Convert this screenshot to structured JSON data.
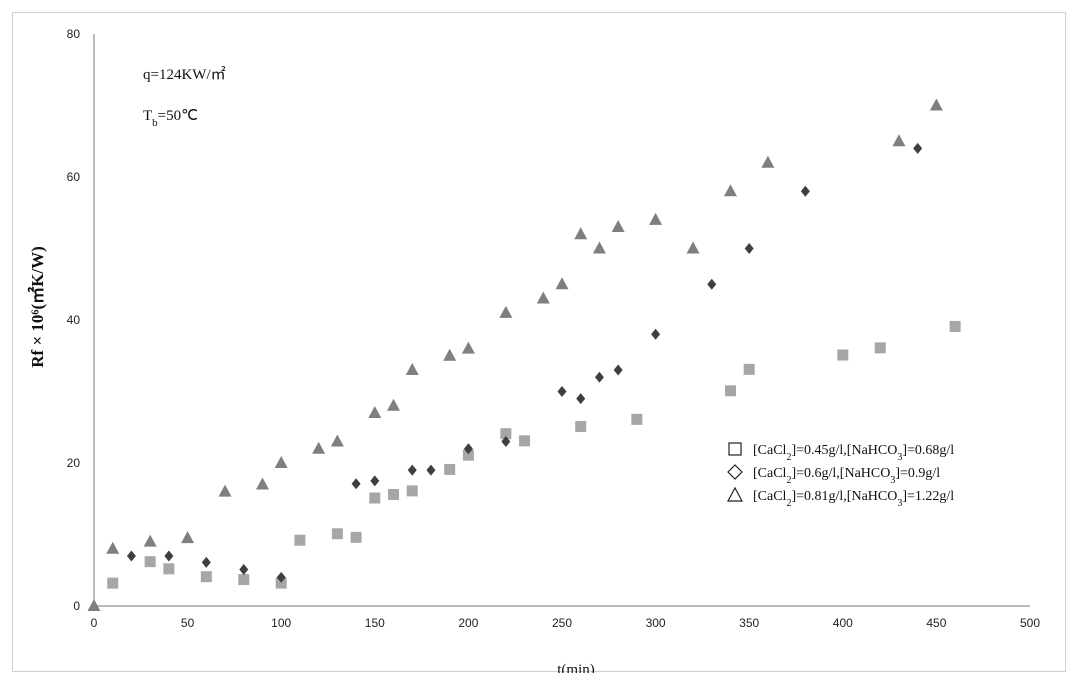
{
  "chart_data": {
    "type": "scatter",
    "xlabel": "t(min)",
    "ylabel": "Rf × 10⁶(㎡K/W)",
    "xlim": [
      0,
      500
    ],
    "ylim": [
      0,
      80
    ],
    "x_ticks": [
      0,
      50,
      100,
      150,
      200,
      250,
      300,
      350,
      400,
      450,
      500
    ],
    "y_ticks": [
      0,
      20,
      40,
      60,
      80
    ],
    "grid": false,
    "legend_position": "right-middle",
    "annotations": [
      "q=124KW/㎡",
      "Tb=50℃"
    ],
    "series": [
      {
        "name": "[CaCl2]=0.45g/l,[NaHCO3]=0.68g/l",
        "marker": "square",
        "color": "#a6a6a6",
        "points": [
          [
            10,
            3.2
          ],
          [
            30,
            6.2
          ],
          [
            40,
            5.2
          ],
          [
            60,
            4.1
          ],
          [
            80,
            3.7
          ],
          [
            100,
            3.2
          ],
          [
            110,
            9.2
          ],
          [
            130,
            10.1
          ],
          [
            140,
            9.6
          ],
          [
            150,
            15.1
          ],
          [
            160,
            15.6
          ],
          [
            170,
            16.1
          ],
          [
            190,
            19.1
          ],
          [
            200,
            21.1
          ],
          [
            220,
            24.1
          ],
          [
            230,
            23.1
          ],
          [
            260,
            25.1
          ],
          [
            290,
            26.1
          ],
          [
            340,
            30.1
          ],
          [
            350,
            33.1
          ],
          [
            400,
            35.1
          ],
          [
            420,
            36.1
          ],
          [
            460,
            39.1
          ]
        ]
      },
      {
        "name": "[CaCl2]=0.6g/l,[NaHCO3]=0.9g/l",
        "marker": "diamond",
        "color": "#3f3f3f",
        "points": [
          [
            20,
            7
          ],
          [
            40,
            7
          ],
          [
            60,
            6.1
          ],
          [
            80,
            5.1
          ],
          [
            100,
            4
          ],
          [
            140,
            17.1
          ],
          [
            150,
            17.5
          ],
          [
            170,
            19
          ],
          [
            180,
            19
          ],
          [
            200,
            22
          ],
          [
            220,
            23
          ],
          [
            250,
            30
          ],
          [
            260,
            29
          ],
          [
            270,
            32
          ],
          [
            280,
            33
          ],
          [
            300,
            38
          ],
          [
            330,
            45
          ],
          [
            350,
            50
          ],
          [
            380,
            58
          ],
          [
            440,
            64
          ]
        ]
      },
      {
        "name": "[CaCl2]=0.81g/l,[NaHCO3]=1.22g/l",
        "marker": "triangle",
        "color": "#7f7f7f",
        "points": [
          [
            0,
            0
          ],
          [
            10,
            8
          ],
          [
            30,
            9
          ],
          [
            50,
            9.5
          ],
          [
            70,
            16
          ],
          [
            90,
            17
          ],
          [
            100,
            20
          ],
          [
            120,
            22
          ],
          [
            130,
            23
          ],
          [
            150,
            27
          ],
          [
            160,
            28
          ],
          [
            170,
            33
          ],
          [
            190,
            35
          ],
          [
            200,
            36
          ],
          [
            220,
            41
          ],
          [
            240,
            43
          ],
          [
            250,
            45
          ],
          [
            260,
            52
          ],
          [
            270,
            50
          ],
          [
            280,
            53
          ],
          [
            300,
            54
          ],
          [
            320,
            50
          ],
          [
            340,
            58
          ],
          [
            360,
            62
          ],
          [
            430,
            65
          ],
          [
            450,
            70
          ]
        ]
      }
    ]
  }
}
